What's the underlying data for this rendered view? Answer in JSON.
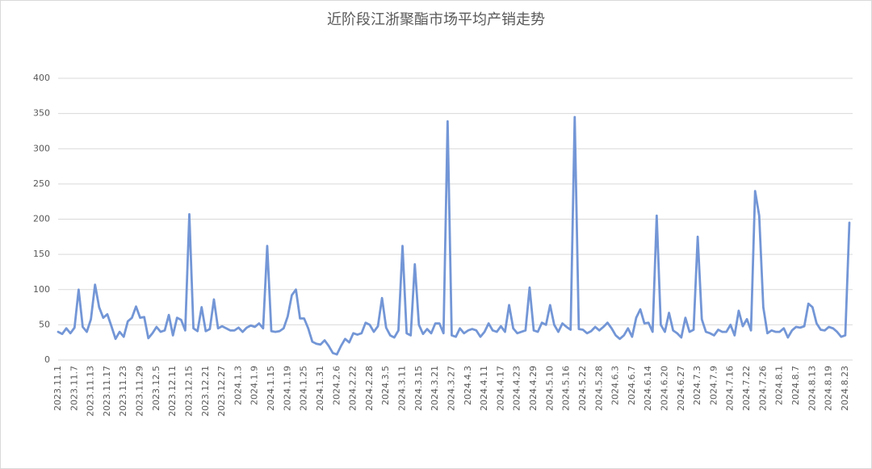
{
  "chart_data": {
    "type": "line",
    "title": "近阶段江浙聚酯市场平均产销走势",
    "categories": [
      "2023.11.1",
      null,
      null,
      null,
      "2023.11.7",
      null,
      null,
      null,
      "2023.11.13",
      null,
      null,
      null,
      "2023.11.17",
      null,
      null,
      null,
      "2023.11.23",
      null,
      null,
      null,
      "2023.11.29",
      null,
      null,
      null,
      "2023.12.5",
      null,
      null,
      null,
      "2023.12.11",
      null,
      null,
      null,
      "2023.12.15",
      null,
      null,
      null,
      "2023.12.21",
      null,
      null,
      null,
      "2023.12.27",
      null,
      null,
      null,
      "2024.1.3",
      null,
      null,
      null,
      "2024.1.9",
      null,
      null,
      null,
      "2024.1.15",
      null,
      null,
      null,
      "2024.1.19",
      null,
      null,
      null,
      "2024.1.25",
      null,
      null,
      null,
      "2024.1.31",
      null,
      null,
      null,
      "2024.2.6",
      null,
      null,
      null,
      "2024.2.22",
      null,
      null,
      null,
      "2024.2.28",
      null,
      null,
      null,
      "2024.3.5",
      null,
      null,
      null,
      "2024.3.11",
      null,
      null,
      null,
      "2024.3.15",
      null,
      null,
      null,
      "2024.3.21",
      null,
      null,
      null,
      "2024.3.27",
      null,
      null,
      null,
      "2024.4.3",
      null,
      null,
      null,
      "2024.4.11",
      null,
      null,
      null,
      "2024.4.17",
      null,
      null,
      null,
      "2024.4.23",
      null,
      null,
      null,
      "2024.4.29",
      null,
      null,
      null,
      "2024.5.10",
      null,
      null,
      null,
      "2024.5.16",
      null,
      null,
      null,
      "2024.5.22",
      null,
      null,
      null,
      "2024.5.28",
      null,
      null,
      null,
      "2024.6.3",
      null,
      null,
      null,
      "2024.6.7",
      null,
      null,
      null,
      "2024.6.14",
      null,
      null,
      null,
      "2024.6.20",
      null,
      null,
      null,
      "2024.6.27",
      null,
      null,
      null,
      "2024.7.3",
      null,
      null,
      null,
      "2024.7.9",
      null,
      null,
      null,
      "2024.7.16",
      null,
      null,
      null,
      "2024.7.22",
      null,
      null,
      null,
      "2024.7.26",
      null,
      null,
      null,
      "2024.8.1",
      null,
      null,
      null,
      "2024.8.7",
      null,
      null,
      null,
      "2024.8.13",
      null,
      null,
      null,
      "2024.8.19",
      null,
      null,
      null,
      "2024.8.23",
      null
    ],
    "values": [
      40,
      37,
      45,
      38,
      46,
      100,
      47,
      40,
      58,
      107,
      75,
      60,
      65,
      48,
      30,
      40,
      33,
      55,
      60,
      76,
      60,
      61,
      31,
      38,
      47,
      40,
      42,
      64,
      35,
      60,
      57,
      42,
      207,
      45,
      41,
      75,
      41,
      44,
      86,
      45,
      48,
      45,
      42,
      42,
      46,
      40,
      46,
      49,
      47,
      52,
      45,
      162,
      41,
      40,
      41,
      45,
      62,
      92,
      100,
      59,
      59,
      45,
      26,
      23,
      22,
      28,
      20,
      10,
      8,
      20,
      30,
      25,
      38,
      36,
      38,
      53,
      50,
      40,
      48,
      88,
      46,
      35,
      32,
      42,
      162,
      38,
      35,
      136,
      50,
      37,
      44,
      38,
      52,
      52,
      38,
      339,
      35,
      33,
      45,
      38,
      42,
      44,
      42,
      33,
      40,
      52,
      42,
      40,
      48,
      40,
      78,
      45,
      38,
      40,
      42,
      103,
      42,
      40,
      53,
      50,
      78,
      50,
      40,
      52,
      47,
      43,
      345,
      44,
      43,
      38,
      41,
      47,
      42,
      47,
      53,
      45,
      35,
      30,
      35,
      45,
      33,
      60,
      72,
      52,
      53,
      40,
      205,
      50,
      40,
      67,
      42,
      38,
      32,
      60,
      40,
      43,
      175,
      58,
      40,
      38,
      35,
      43,
      40,
      40,
      50,
      35,
      70,
      48,
      58,
      42,
      240,
      205,
      75,
      38,
      42,
      40,
      40,
      45,
      32,
      42,
      47,
      46,
      48,
      80,
      75,
      52,
      43,
      42,
      47,
      45,
      40,
      33,
      35,
      195
    ],
    "color": "#7396d6",
    "ylim": [
      0,
      400
    ],
    "yticks": [
      0,
      50,
      100,
      150,
      200,
      250,
      300,
      350,
      400
    ],
    "grid": true
  }
}
